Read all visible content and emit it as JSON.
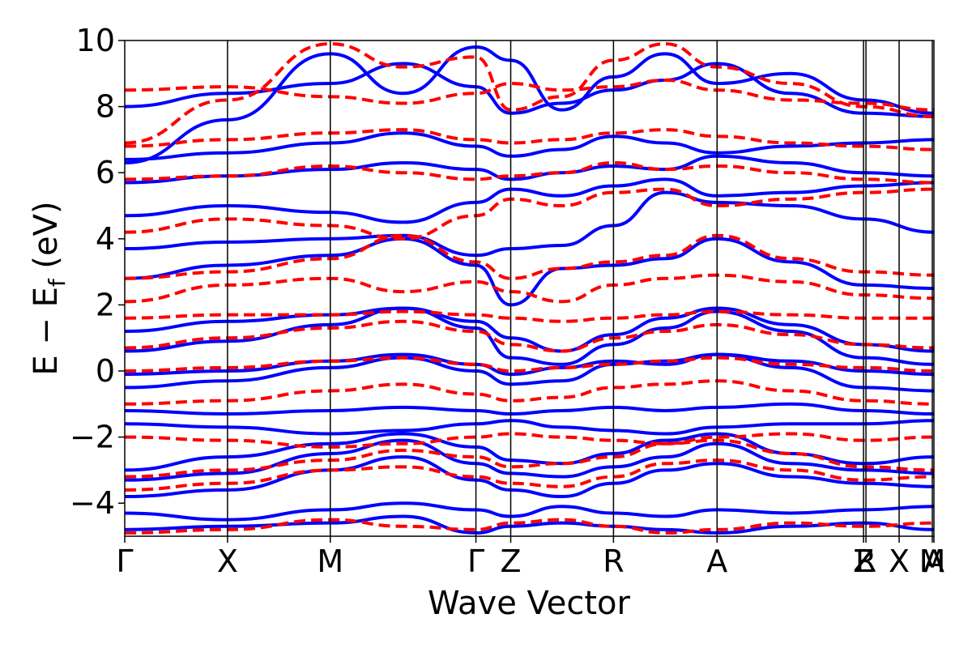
{
  "chart_data": {
    "type": "line",
    "title": "",
    "xlabel": "Wave Vector",
    "ylabel": "E − E",
    "ylabel_subscript": "f",
    "ylabel_unit": " (eV)",
    "ylim": [
      -5,
      10
    ],
    "yticks": [
      {
        "value": -4,
        "label": "−4"
      },
      {
        "value": -2,
        "label": "−2"
      },
      {
        "value": 0,
        "label": "0"
      },
      {
        "value": 2,
        "label": "2"
      },
      {
        "value": 4,
        "label": "4"
      },
      {
        "value": 6,
        "label": "6"
      },
      {
        "value": 8,
        "label": "8"
      },
      {
        "value": 10,
        "label": "10"
      }
    ],
    "xlim": [
      0,
      1
    ],
    "high_symmetry_points": [
      {
        "label": "Γ",
        "x": 0.0
      },
      {
        "label": "X",
        "x": 0.127
      },
      {
        "label": "M",
        "x": 0.254
      },
      {
        "label": "Γ",
        "x": 0.434
      },
      {
        "label": "Z",
        "x": 0.477
      },
      {
        "label": "R",
        "x": 0.604
      },
      {
        "label": "A",
        "x": 0.732
      },
      {
        "label": "Z",
        "x": 0.913
      },
      {
        "label": "R",
        "x": 0.916
      },
      {
        "label": "X",
        "x": 0.957
      },
      {
        "label": "M",
        "x": 0.998
      },
      {
        "label": "A",
        "x": 1.0
      }
    ],
    "series": [
      {
        "name": "blue-solid",
        "color": "#0000ff",
        "style": "solid",
        "bands": [
          {
            "y": [
              -4.8,
              -4.7,
              -4.6,
              -4.4,
              -4.9,
              -4.7,
              -4.6,
              -4.7,
              -4.8,
              -4.9,
              -4.7,
              -4.6,
              -4.8
            ]
          },
          {
            "y": [
              -4.3,
              -4.5,
              -4.2,
              -4.0,
              -4.2,
              -4.4,
              -4.1,
              -4.3,
              -4.4,
              -4.2,
              -4.3,
              -4.2,
              -4.1
            ]
          },
          {
            "y": [
              -3.8,
              -3.6,
              -3.0,
              -2.6,
              -3.3,
              -3.6,
              -3.8,
              -3.4,
              -3.0,
              -2.8,
              -3.2,
              -3.4,
              -3.5
            ]
          },
          {
            "y": [
              -3.3,
              -3.1,
              -2.5,
              -2.1,
              -2.8,
              -3.1,
              -3.2,
              -2.9,
              -2.6,
              -2.2,
              -2.8,
              -3.0,
              -3.1
            ]
          },
          {
            "y": [
              -3.0,
              -2.6,
              -2.2,
              -1.9,
              -2.3,
              -2.7,
              -2.8,
              -2.5,
              -2.1,
              -1.9,
              -2.5,
              -2.8,
              -2.6
            ]
          },
          {
            "y": [
              -1.6,
              -1.7,
              -1.9,
              -1.8,
              -1.6,
              -1.5,
              -1.7,
              -1.8,
              -1.9,
              -1.7,
              -1.6,
              -1.6,
              -1.5
            ]
          },
          {
            "y": [
              -1.2,
              -1.3,
              -1.2,
              -1.1,
              -1.2,
              -1.3,
              -1.2,
              -1.1,
              -1.2,
              -1.1,
              -1.0,
              -1.2,
              -1.3
            ]
          },
          {
            "y": [
              -0.5,
              -0.3,
              0.1,
              0.4,
              0.0,
              -0.4,
              -0.3,
              0.2,
              0.3,
              0.5,
              0.1,
              -0.5,
              -0.6
            ]
          },
          {
            "y": [
              -0.1,
              0.0,
              0.3,
              0.5,
              0.2,
              -0.1,
              0.1,
              0.3,
              0.2,
              0.5,
              0.3,
              0.0,
              -0.1
            ]
          },
          {
            "y": [
              0.6,
              0.9,
              1.4,
              1.9,
              1.3,
              0.4,
              0.2,
              0.8,
              1.3,
              1.8,
              1.2,
              0.4,
              0.2
            ]
          },
          {
            "y": [
              1.2,
              1.5,
              1.7,
              1.9,
              1.5,
              1.0,
              0.6,
              1.1,
              1.6,
              1.9,
              1.4,
              0.8,
              0.6
            ]
          },
          {
            "y": [
              2.8,
              3.2,
              3.5,
              4.0,
              3.2,
              2.0,
              3.1,
              3.2,
              3.4,
              4.0,
              3.3,
              2.6,
              2.5
            ]
          },
          {
            "y": [
              3.7,
              3.9,
              4.0,
              4.1,
              3.5,
              3.7,
              3.8,
              4.4,
              5.4,
              5.1,
              5.0,
              4.6,
              4.2
            ]
          },
          {
            "y": [
              4.7,
              5.0,
              4.8,
              4.5,
              5.1,
              5.5,
              5.3,
              5.6,
              5.8,
              5.3,
              5.4,
              5.6,
              5.7
            ]
          },
          {
            "y": [
              5.7,
              5.9,
              6.1,
              6.3,
              6.1,
              5.8,
              6.0,
              6.2,
              6.1,
              6.5,
              6.3,
              6.0,
              5.9
            ]
          },
          {
            "y": [
              6.4,
              6.6,
              6.9,
              7.2,
              6.8,
              6.5,
              6.7,
              7.1,
              6.9,
              6.6,
              6.8,
              6.9,
              7.0
            ]
          },
          {
            "y": [
              8.0,
              8.4,
              8.7,
              9.3,
              8.6,
              7.8,
              8.1,
              8.5,
              8.8,
              9.3,
              8.4,
              7.8,
              7.7
            ]
          },
          {
            "y": [
              6.3,
              7.6,
              9.6,
              8.4,
              9.8,
              9.4,
              7.9,
              8.9,
              9.6,
              8.7,
              9.0,
              8.2,
              7.8
            ]
          }
        ]
      },
      {
        "name": "red-dashed",
        "color": "#ff0000",
        "style": "dashed",
        "bands": [
          {
            "y": [
              -4.9,
              -4.8,
              -4.5,
              -4.7,
              -4.8,
              -4.6,
              -4.5,
              -4.7,
              -4.9,
              -4.8,
              -4.6,
              -4.7,
              -4.6
            ]
          },
          {
            "y": [
              -3.6,
              -3.4,
              -3.0,
              -2.9,
              -3.2,
              -3.4,
              -3.5,
              -3.2,
              -2.8,
              -2.7,
              -3.0,
              -3.3,
              -3.2
            ]
          },
          {
            "y": [
              -3.2,
              -3.0,
              -2.7,
              -2.4,
              -2.6,
              -2.9,
              -2.8,
              -2.6,
              -2.2,
              -2.1,
              -2.5,
              -2.9,
              -3.0
            ]
          },
          {
            "y": [
              -2.0,
              -2.1,
              -2.3,
              -2.2,
              -2.0,
              -1.9,
              -2.0,
              -2.1,
              -2.2,
              -2.0,
              -1.9,
              -2.1,
              -2.0
            ]
          },
          {
            "y": [
              -1.0,
              -0.9,
              -0.6,
              -0.4,
              -0.7,
              -0.9,
              -0.8,
              -0.5,
              -0.4,
              -0.3,
              -0.6,
              -0.9,
              -1.0
            ]
          },
          {
            "y": [
              0.0,
              0.1,
              0.3,
              0.4,
              0.2,
              0.0,
              0.1,
              0.2,
              0.3,
              0.4,
              0.2,
              0.1,
              0.0
            ]
          },
          {
            "y": [
              0.7,
              1.0,
              1.3,
              1.5,
              1.2,
              0.8,
              0.6,
              1.0,
              1.2,
              1.4,
              1.1,
              0.8,
              0.7
            ]
          },
          {
            "y": [
              1.6,
              1.7,
              1.7,
              1.8,
              1.7,
              1.6,
              1.5,
              1.6,
              1.7,
              1.8,
              1.7,
              1.6,
              1.6
            ]
          },
          {
            "y": [
              2.1,
              2.6,
              2.8,
              2.4,
              2.7,
              2.4,
              2.1,
              2.6,
              2.8,
              2.9,
              2.7,
              2.3,
              2.2
            ]
          },
          {
            "y": [
              2.8,
              3.0,
              3.4,
              4.1,
              3.3,
              2.8,
              3.1,
              3.3,
              3.5,
              4.1,
              3.4,
              3.0,
              2.9
            ]
          },
          {
            "y": [
              4.2,
              4.6,
              4.4,
              4.0,
              4.7,
              5.2,
              5.0,
              5.4,
              5.5,
              5.0,
              5.2,
              5.4,
              5.5
            ]
          },
          {
            "y": [
              5.8,
              5.9,
              6.2,
              6.0,
              5.8,
              5.9,
              6.0,
              6.3,
              6.1,
              6.2,
              6.0,
              5.8,
              5.7
            ]
          },
          {
            "y": [
              6.8,
              7.0,
              7.2,
              7.3,
              7.0,
              6.9,
              7.0,
              7.2,
              7.3,
              7.1,
              6.9,
              6.8,
              6.7
            ]
          },
          {
            "y": [
              8.5,
              8.6,
              8.3,
              8.1,
              8.4,
              8.7,
              8.5,
              8.6,
              8.8,
              8.5,
              8.2,
              8.1,
              7.9
            ]
          },
          {
            "y": [
              6.9,
              8.2,
              9.9,
              9.2,
              9.5,
              7.9,
              8.3,
              9.4,
              9.9,
              9.2,
              8.7,
              8.0,
              7.7
            ]
          }
        ]
      }
    ]
  }
}
